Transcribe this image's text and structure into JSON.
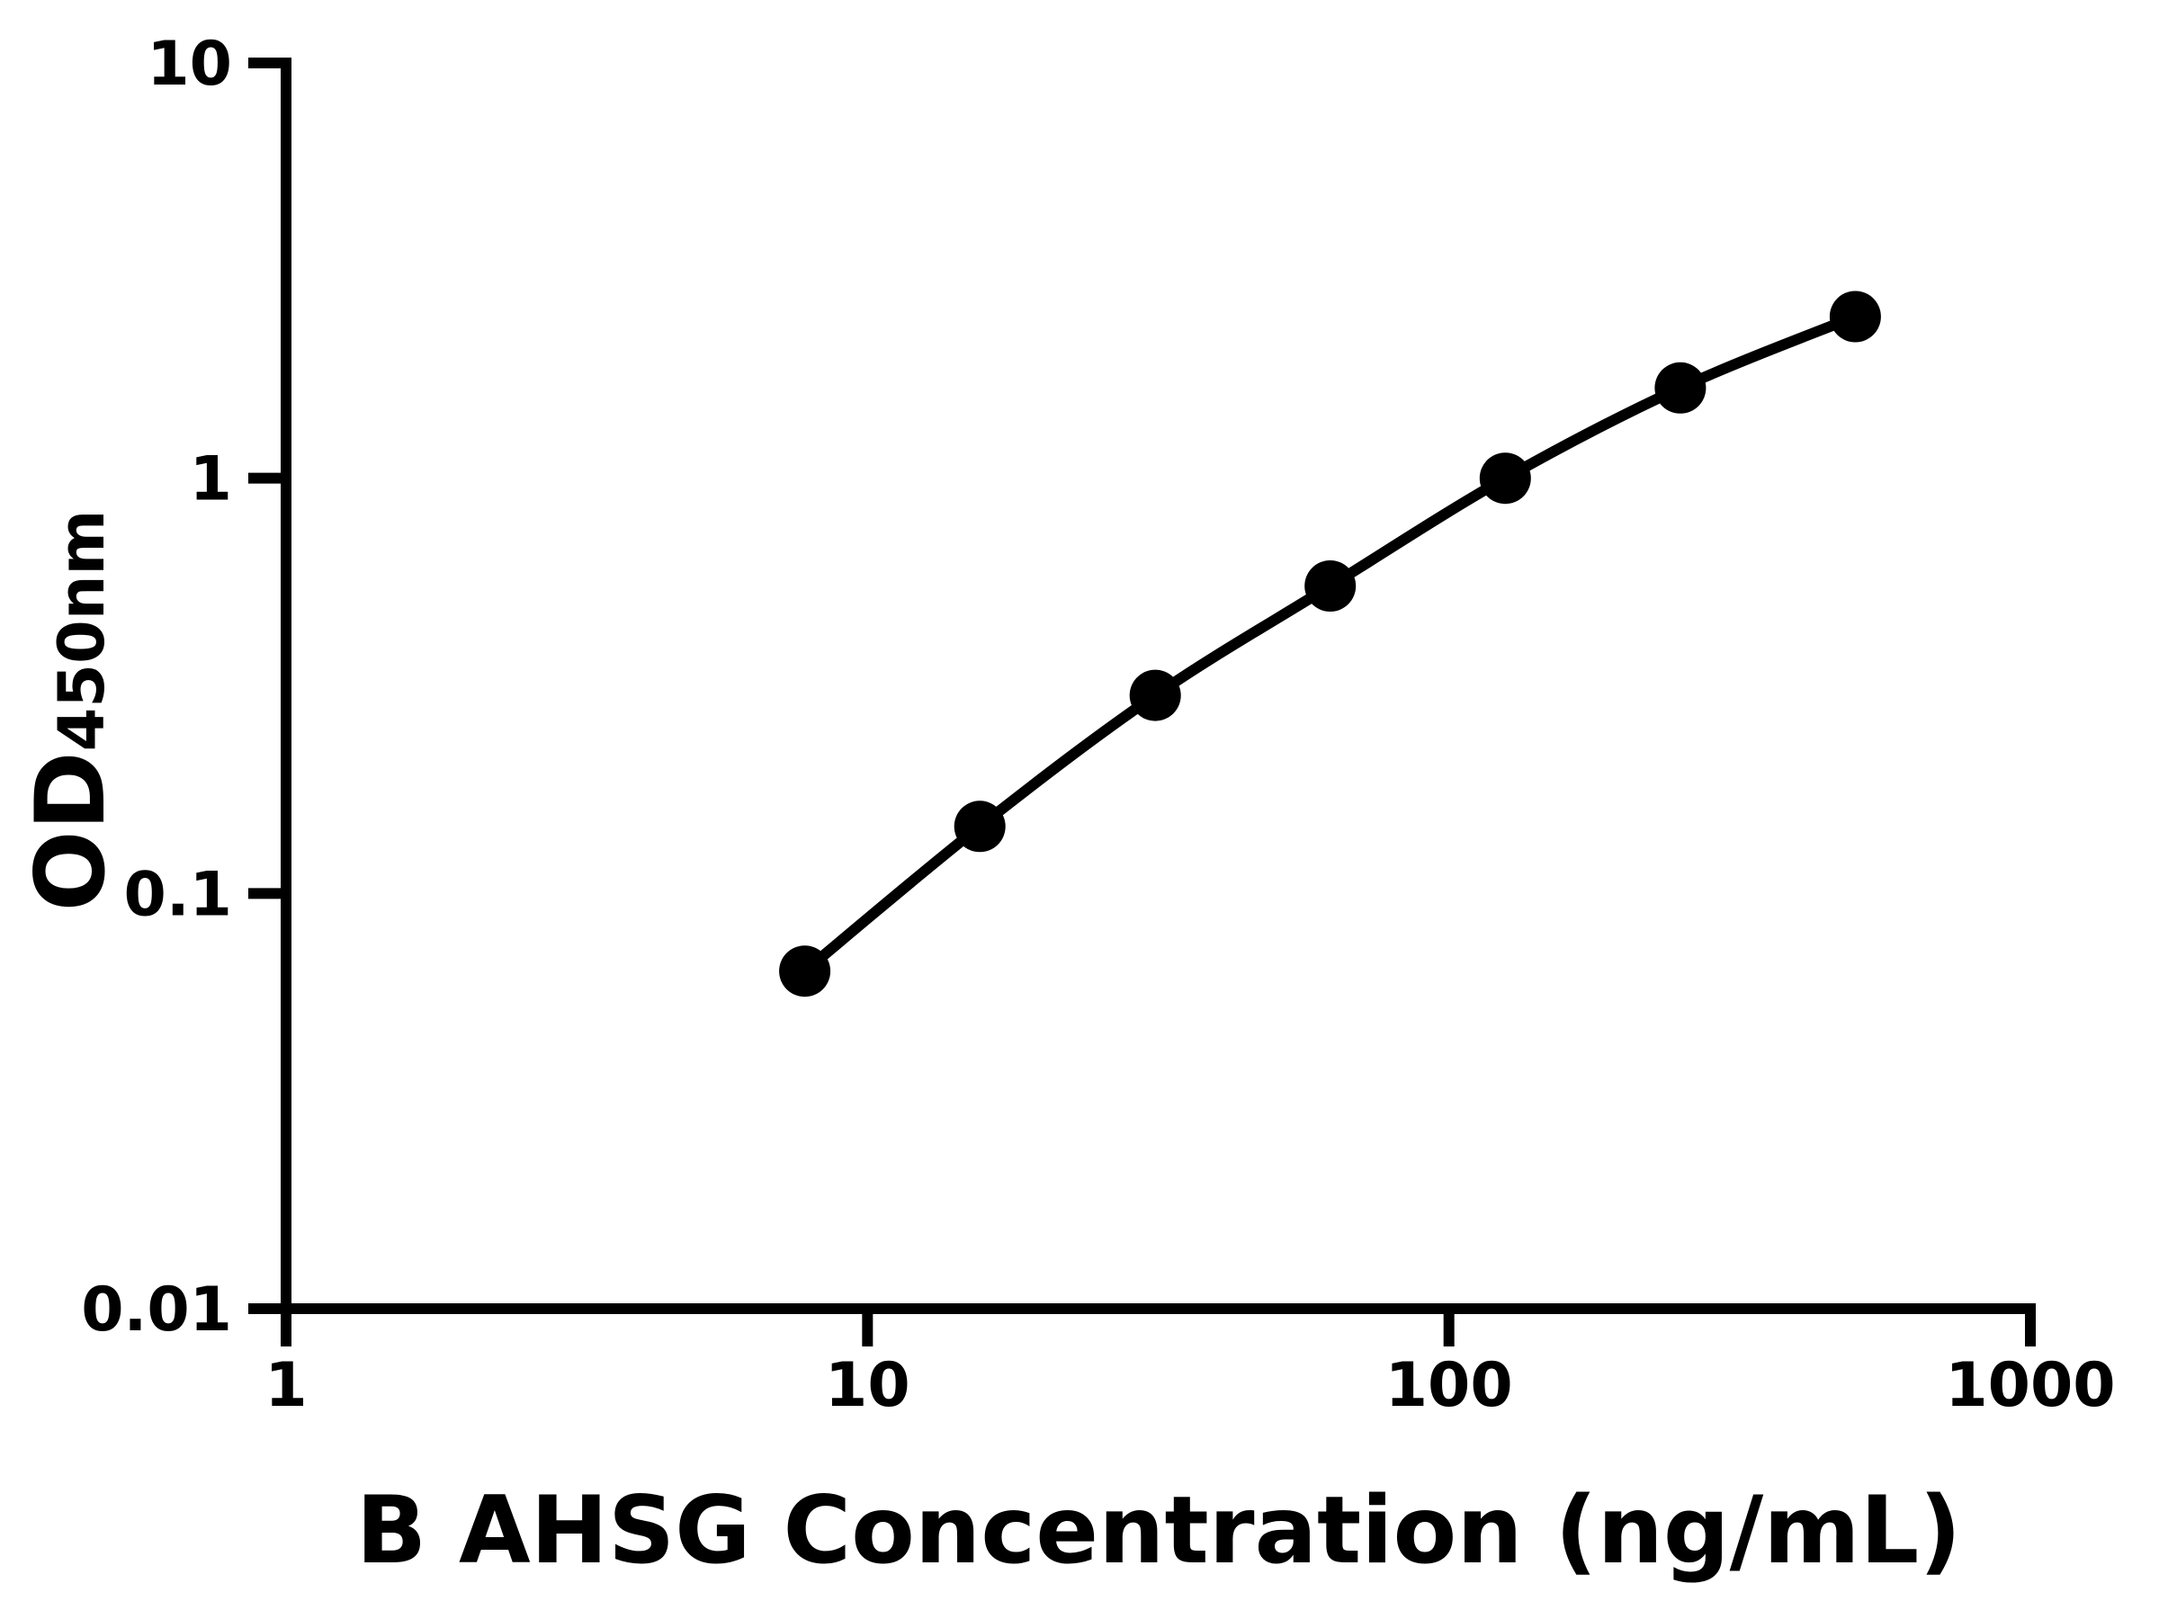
{
  "chart_data": {
    "type": "scatter",
    "title": "",
    "xlabel": "B AHSG Concentration (ng/mL)",
    "ylabel_main": "OD",
    "ylabel_sub": "450nm",
    "x_scale": "log",
    "y_scale": "log",
    "xlim": [
      1,
      1000
    ],
    "ylim": [
      0.01,
      10
    ],
    "x_ticks": [
      1,
      10,
      100,
      1000
    ],
    "x_tick_labels": [
      "1",
      "10",
      "100",
      "1000"
    ],
    "y_ticks": [
      10,
      1,
      0.1,
      0.01
    ],
    "y_tick_labels": [
      "10",
      "1",
      "0.1",
      "0.01"
    ],
    "grid": false,
    "legend": "none",
    "marker": "filled-circle",
    "line_style": "solid-smooth",
    "color": "#000000",
    "background": "#ffffff",
    "series": [
      {
        "x": [
          7.8,
          15.6,
          31.25,
          62.5,
          125,
          250,
          500
        ],
        "y": [
          0.065,
          0.145,
          0.3,
          0.55,
          1.0,
          1.65,
          2.45
        ]
      }
    ]
  }
}
